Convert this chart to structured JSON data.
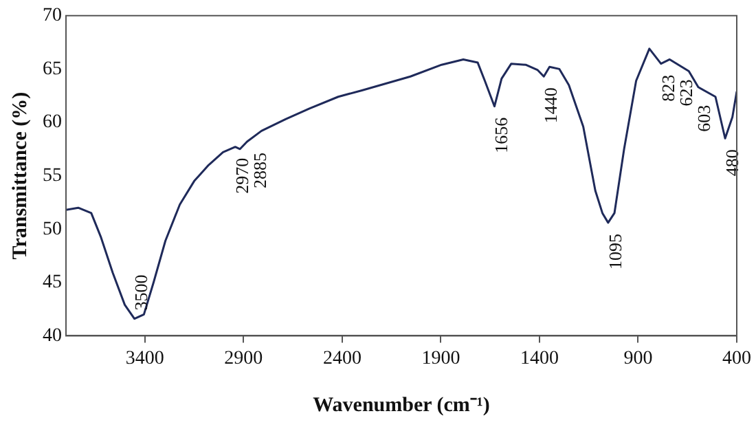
{
  "chart_data": {
    "type": "line",
    "xlabel": "Wavenumber (cm⁻¹)",
    "ylabel": "Transmittance (%)",
    "xlim": [
      3800,
      400
    ],
    "xticks": [
      3400,
      2900,
      2400,
      1900,
      1400,
      900,
      400
    ],
    "ylim": [
      40,
      70
    ],
    "yticks": [
      40,
      45,
      50,
      55,
      60,
      65,
      70
    ],
    "grid": false,
    "legend": false,
    "marker": "none",
    "line_style": "solid",
    "x": [
      3800,
      3738,
      3672,
      3624,
      3563,
      3502,
      3453,
      3405,
      3356,
      3296,
      3223,
      3150,
      3077,
      3004,
      2942,
      2918,
      2882,
      2809,
      2687,
      2566,
      2420,
      2300,
      2054,
      1896,
      1786,
      1713,
      1677,
      1628,
      1592,
      1543,
      1470,
      1409,
      1378,
      1349,
      1299,
      1251,
      1178,
      1117,
      1081,
      1052,
      1020,
      971,
      910,
      843,
      784,
      740,
      643,
      595,
      508,
      459,
      422,
      400
    ],
    "series": [
      {
        "color": "#1f2a5a",
        "values": [
          51.8,
          52.0,
          51.5,
          49.3,
          45.9,
          42.9,
          41.6,
          42.0,
          45.0,
          48.9,
          52.3,
          54.5,
          56.0,
          57.2,
          57.7,
          57.5,
          58.2,
          59.2,
          60.3,
          61.3,
          62.4,
          63.0,
          64.3,
          65.4,
          65.9,
          65.6,
          63.9,
          61.5,
          64.1,
          65.5,
          65.4,
          64.9,
          64.3,
          65.2,
          65.0,
          63.5,
          59.6,
          53.6,
          51.5,
          50.6,
          51.5,
          57.5,
          63.9,
          66.9,
          65.5,
          65.9,
          64.8,
          63.3,
          62.4,
          58.5,
          60.5,
          62.9
        ]
      }
    ],
    "annotations": [
      {
        "text": "3500",
        "x": 3453,
        "y": 41.6
      },
      {
        "text": "2970",
        "x": 2942,
        "y": 57.7
      },
      {
        "text": "2885",
        "x": 2882,
        "y": 58.2
      },
      {
        "text": "1656",
        "x": 1628,
        "y": 61.5
      },
      {
        "text": "1440",
        "x": 1378,
        "y": 64.3
      },
      {
        "text": "1095",
        "x": 1052,
        "y": 50.6
      },
      {
        "text": "823",
        "x": 784,
        "y": 65.5
      },
      {
        "text": "623",
        "x": 740,
        "y": 65.9
      },
      {
        "text": "603",
        "x": 643,
        "y": 64.8
      },
      {
        "text": "480",
        "x": 459,
        "y": 58.5
      }
    ]
  }
}
